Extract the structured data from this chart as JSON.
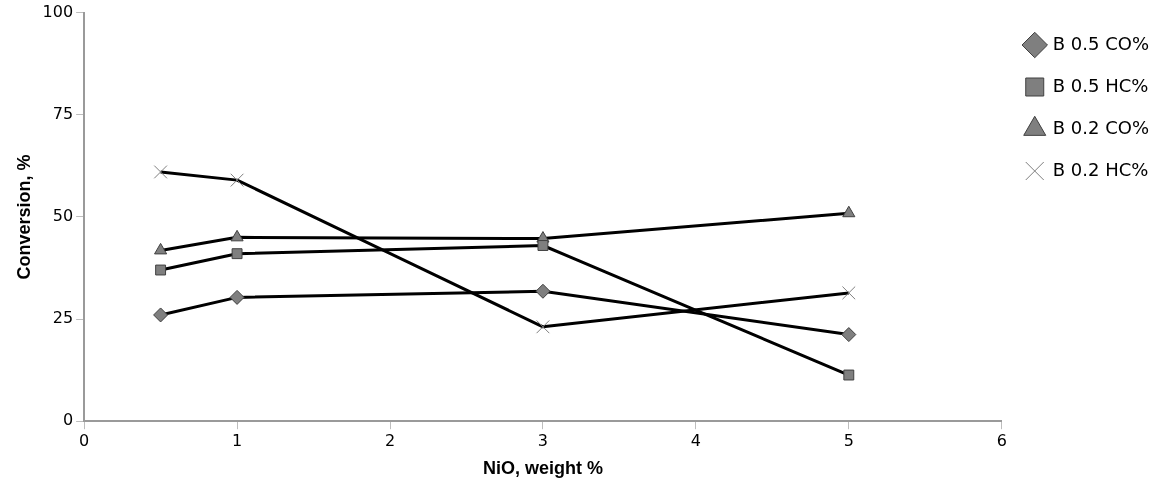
{
  "chart_data": {
    "type": "line",
    "xlabel": "NiO, weight %",
    "ylabel": "Conversion, %",
    "x": [
      0.5,
      1,
      3,
      5
    ],
    "series": [
      {
        "name": "B 0.5 CO%",
        "color": "#000000",
        "marker": "diamond",
        "values": [
          26,
          30.3,
          31.8,
          21.2
        ]
      },
      {
        "name": "B 0.5 HC%",
        "color": "#000000",
        "marker": "square",
        "values": [
          37,
          41,
          43,
          11.3
        ]
      },
      {
        "name": "B 0.2 CO%",
        "color": "#000000",
        "marker": "triangle",
        "values": [
          41.8,
          45,
          44.7,
          50.9
        ]
      },
      {
        "name": "B 0.2 HC%",
        "color": "#000000",
        "marker": "cross",
        "values": [
          61,
          59,
          23.1,
          31.4
        ]
      }
    ],
    "xlim": [
      0,
      6
    ],
    "xticks": [
      0,
      1,
      2,
      3,
      4,
      5,
      6
    ],
    "ylim": [
      0,
      100
    ],
    "yticks": [
      0,
      25,
      50,
      75,
      100
    ],
    "grid": false,
    "legend": "top right",
    "line_style": "solid"
  }
}
